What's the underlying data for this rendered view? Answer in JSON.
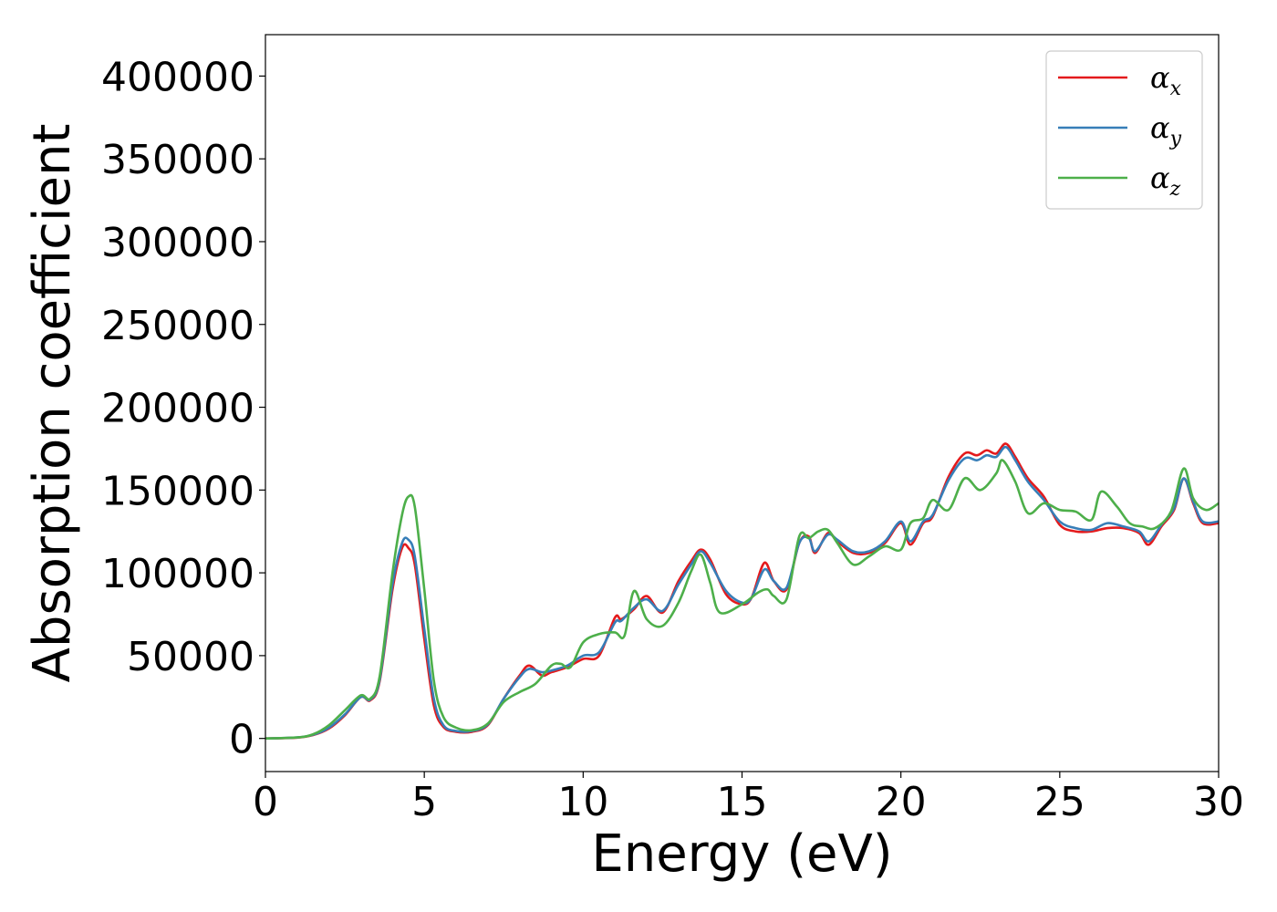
{
  "chart_data": {
    "type": "line",
    "xlabel": "Energy (eV)",
    "ylabel": "Absorption coefficient",
    "xlim": [
      0,
      30
    ],
    "ylim": [
      -20000,
      425000
    ],
    "x_ticks": [
      "0",
      "5",
      "10",
      "15",
      "20",
      "25",
      "30"
    ],
    "y_ticks": [
      "0",
      "50000",
      "100000",
      "150000",
      "200000",
      "250000",
      "300000",
      "350000",
      "400000"
    ],
    "grid": false,
    "legend_position": "top-right",
    "colors": {
      "alpha_x": "#e41a1c",
      "alpha_y": "#377eb8",
      "alpha_z": "#4daf4a"
    },
    "series": [
      {
        "name": "α",
        "subscript": "x",
        "color": "#e41a1c",
        "x": [
          0,
          1,
          1.5,
          2,
          2.5,
          3,
          3.3,
          3.6,
          4,
          4.3,
          4.5,
          4.7,
          5,
          5.3,
          5.6,
          6,
          6.5,
          7,
          7.5,
          8,
          8.3,
          8.7,
          9,
          9.5,
          10,
          10.5,
          11,
          11.2,
          11.6,
          12,
          12.5,
          13,
          13.4,
          13.7,
          14,
          14.5,
          15,
          15.3,
          15.7,
          16,
          16.4,
          16.8,
          17.1,
          17.3,
          17.7,
          18,
          18.5,
          19,
          19.5,
          20,
          20.3,
          20.7,
          21,
          21.5,
          22,
          22.4,
          22.7,
          23,
          23.3,
          23.6,
          24,
          24.5,
          25,
          25.5,
          26,
          26.5,
          27,
          27.5,
          27.8,
          28.2,
          28.6,
          28.9,
          29.2,
          29.5,
          30
        ],
        "y": [
          0,
          500,
          2000,
          6000,
          14000,
          25000,
          23000,
          35000,
          90000,
          115000,
          115000,
          105000,
          60000,
          20000,
          7000,
          4000,
          4000,
          8000,
          24000,
          38000,
          44000,
          38000,
          40000,
          43000,
          48000,
          50000,
          73000,
          72000,
          78000,
          86000,
          76000,
          95000,
          107000,
          114000,
          108000,
          87000,
          81000,
          85000,
          106000,
          95000,
          90000,
          118000,
          122000,
          112000,
          124000,
          119000,
          112000,
          112000,
          118000,
          130000,
          117000,
          130000,
          134000,
          158000,
          172000,
          171000,
          174000,
          172000,
          178000,
          170000,
          157000,
          146000,
          129000,
          125000,
          125000,
          127000,
          127000,
          124000,
          117000,
          128000,
          138000,
          157000,
          142000,
          130000,
          130000
        ]
      },
      {
        "name": "α",
        "subscript": "y",
        "color": "#377eb8",
        "x": [
          0,
          1,
          1.5,
          2,
          2.5,
          3,
          3.3,
          3.6,
          4,
          4.3,
          4.5,
          4.7,
          5,
          5.3,
          5.6,
          6,
          6.5,
          7,
          7.5,
          8,
          8.3,
          8.7,
          9,
          9.5,
          10,
          10.5,
          11,
          11.2,
          11.6,
          12,
          12.5,
          13,
          13.4,
          13.7,
          14,
          14.5,
          15,
          15.3,
          15.7,
          16,
          16.4,
          16.8,
          17.1,
          17.3,
          17.7,
          18,
          18.5,
          19,
          19.5,
          20,
          20.3,
          20.7,
          21,
          21.5,
          22,
          22.4,
          22.7,
          23,
          23.3,
          23.6,
          24,
          24.5,
          25,
          25.5,
          26,
          26.5,
          27,
          27.5,
          27.8,
          28.2,
          28.6,
          28.9,
          29.2,
          29.5,
          30
        ],
        "y": [
          0,
          600,
          2200,
          6500,
          14500,
          25000,
          23500,
          36000,
          93000,
          118000,
          120000,
          110000,
          66000,
          24000,
          8000,
          4500,
          4500,
          8500,
          24000,
          37000,
          42000,
          40000,
          41000,
          44000,
          50000,
          52000,
          70000,
          71000,
          79000,
          84000,
          77000,
          93000,
          105000,
          113000,
          106000,
          89000,
          82000,
          85000,
          102000,
          95000,
          91000,
          118000,
          121000,
          113000,
          123000,
          120000,
          113000,
          113000,
          119000,
          131000,
          119000,
          131000,
          135000,
          156000,
          169000,
          168000,
          171000,
          170000,
          176000,
          168000,
          155000,
          144000,
          131000,
          127000,
          126000,
          130000,
          128000,
          125000,
          119000,
          129000,
          139000,
          157000,
          143000,
          131000,
          131000
        ]
      },
      {
        "name": "α",
        "subscript": "z",
        "color": "#4daf4a",
        "x": [
          0,
          1,
          1.5,
          2,
          2.5,
          3,
          3.3,
          3.6,
          4,
          4.3,
          4.5,
          4.7,
          5,
          5.3,
          5.6,
          6,
          6.5,
          7,
          7.5,
          8,
          8.5,
          9,
          9.3,
          9.6,
          10,
          10.5,
          11,
          11.3,
          11.6,
          12,
          12.5,
          13,
          13.4,
          13.7,
          14,
          14.3,
          15,
          15.5,
          15.8,
          16,
          16.4,
          16.8,
          17.1,
          17.4,
          17.7,
          18,
          18.5,
          19,
          19.5,
          20,
          20.3,
          20.7,
          21,
          21.5,
          22,
          22.5,
          23,
          23.2,
          23.6,
          24,
          24.5,
          25,
          25.5,
          26,
          26.3,
          26.8,
          27.2,
          27.6,
          28,
          28.5,
          28.9,
          29.2,
          29.6,
          30
        ],
        "y": [
          0,
          600,
          2500,
          8000,
          17000,
          26000,
          24000,
          38000,
          100000,
          135000,
          146000,
          140000,
          90000,
          35000,
          13000,
          6500,
          5000,
          9000,
          22000,
          28000,
          33000,
          44000,
          45000,
          43000,
          58000,
          63000,
          64000,
          62000,
          89000,
          72000,
          68000,
          82000,
          101000,
          111000,
          94000,
          76000,
          81000,
          88000,
          90000,
          86000,
          84000,
          122000,
          121000,
          125000,
          126000,
          118000,
          105000,
          110000,
          116000,
          114000,
          130000,
          133000,
          144000,
          138000,
          157000,
          150000,
          160000,
          168000,
          155000,
          136000,
          142000,
          138000,
          137000,
          132000,
          149000,
          140000,
          130000,
          128000,
          127000,
          137000,
          163000,
          145000,
          138000,
          142000
        ]
      }
    ]
  }
}
